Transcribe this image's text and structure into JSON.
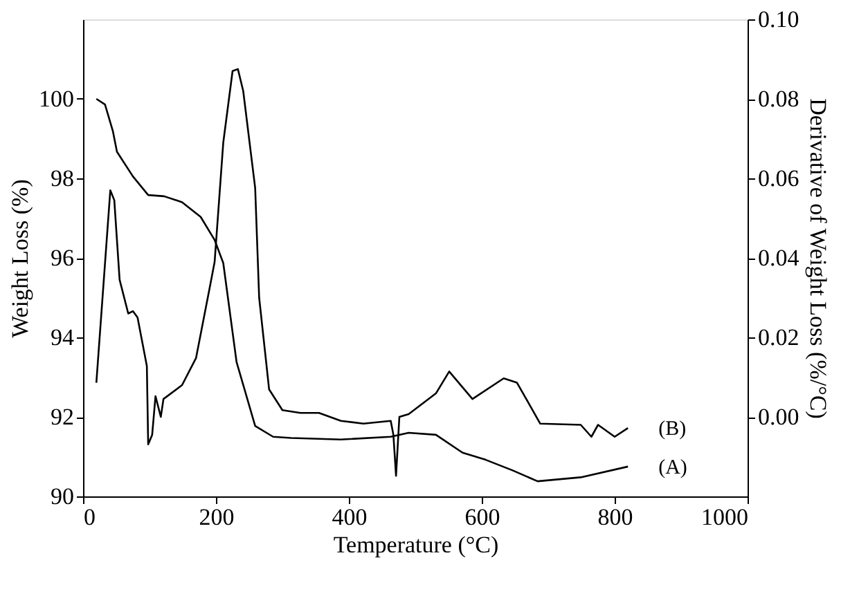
{
  "chart_data": {
    "type": "line",
    "xlabel": "Temperature (°C)",
    "ylabel": "Weight Loss (%)",
    "y2label": "Derivative of Weight Loss (%/°C)",
    "xlim": [
      0,
      1000
    ],
    "xticks": [
      0,
      200,
      400,
      600,
      800,
      1000
    ],
    "ylim": [
      90,
      102
    ],
    "yticks": [
      90,
      92,
      94,
      96,
      98,
      100
    ],
    "y2lim": [
      -0.02,
      0.1
    ],
    "y2ticks": [
      {
        "value": 0,
        "label": "0.00"
      },
      {
        "value": 0.02,
        "label": "0.02"
      },
      {
        "value": 0.04,
        "label": "0.04"
      },
      {
        "value": 0.06,
        "label": "0.06"
      },
      {
        "value": 0.08,
        "label": "0.08"
      },
      {
        "value": 0.1,
        "label": "0.10"
      }
    ],
    "series": [
      {
        "name": "(A)",
        "color": "#000000",
        "x": [
          20,
          33,
          45,
          51,
          75,
          98,
          122,
          149,
          177,
          198,
          211,
          231,
          259,
          286,
          313,
          388,
          463,
          490,
          531,
          571,
          606,
          647,
          684,
          749,
          820
        ],
        "values": [
          100.0,
          99.86,
          99.18,
          98.67,
          98.05,
          97.58,
          97.55,
          97.4,
          97.03,
          96.45,
          95.87,
          93.38,
          91.77,
          91.5,
          91.47,
          91.43,
          91.5,
          91.6,
          91.55,
          91.1,
          90.92,
          90.65,
          90.38,
          90.48,
          90.75
        ]
      },
      {
        "name": "(B)",
        "color": "#000000",
        "axis": "y2",
        "x": [
          20,
          41,
          47,
          55,
          68,
          75,
          82,
          96,
          98,
          104,
          109,
          117,
          121,
          149,
          170,
          190,
          198,
          211,
          225,
          233,
          241,
          259,
          265,
          280,
          300,
          327,
          355,
          388,
          422,
          463,
          467,
          471,
          476,
          490,
          531,
          551,
          586,
          633,
          653,
          688,
          749,
          765,
          775,
          800,
          820
        ],
        "values": [
          0.0086,
          0.057,
          0.0545,
          0.0345,
          0.026,
          0.0266,
          0.025,
          0.0128,
          -0.0069,
          -0.0045,
          0.0052,
          0.0,
          0.0045,
          0.008,
          0.0148,
          0.032,
          0.039,
          0.069,
          0.087,
          0.0875,
          0.082,
          0.0576,
          0.03,
          0.0069,
          0.0017,
          0.001,
          0.001,
          -0.001,
          -0.0017,
          -0.001,
          -0.0045,
          -0.0148,
          0.0,
          0.0007,
          0.0059,
          0.0114,
          0.0045,
          0.0097,
          0.0086,
          -0.0017,
          -0.002,
          -0.005,
          -0.002,
          -0.005,
          -0.0028
        ]
      }
    ]
  }
}
